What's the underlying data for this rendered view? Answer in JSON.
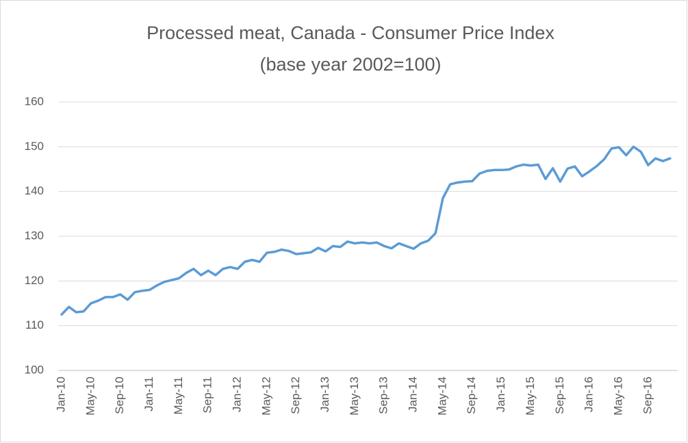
{
  "chart_data": {
    "type": "line",
    "title": "Processed meat, Canada - Consumer Price Index",
    "subtitle": "(base year 2002=100)",
    "categories": [
      "Jan-10",
      null,
      null,
      null,
      "May-10",
      null,
      null,
      null,
      "Sep-10",
      null,
      null,
      null,
      "Jan-11",
      null,
      null,
      null,
      "May-11",
      null,
      null,
      null,
      "Sep-11",
      null,
      null,
      null,
      "Jan-12",
      null,
      null,
      null,
      "May-12",
      null,
      null,
      null,
      "Sep-12",
      null,
      null,
      null,
      "Jan-13",
      null,
      null,
      null,
      "May-13",
      null,
      null,
      null,
      "Sep-13",
      null,
      null,
      null,
      "Jan-14",
      null,
      null,
      null,
      "May-14",
      null,
      null,
      null,
      "Sep-14",
      null,
      null,
      null,
      "Jan-15",
      null,
      null,
      null,
      "May-15",
      null,
      null,
      null,
      "Sep-15",
      null,
      null,
      null,
      "Jan-16",
      null,
      null,
      null,
      "May-16",
      null,
      null,
      null,
      "Sep-16",
      null,
      null,
      null
    ],
    "values": [
      112.5,
      114.2,
      113,
      113.2,
      115,
      115.6,
      116.4,
      116.4,
      117,
      115.8,
      117.5,
      117.8,
      118,
      119,
      119.8,
      120.2,
      120.6,
      121.8,
      122.7,
      121.3,
      122.3,
      121.3,
      122.7,
      123.1,
      122.7,
      124.3,
      124.7,
      124.3,
      126.3,
      126.5,
      127,
      126.7,
      126,
      126.2,
      126.4,
      127.4,
      126.6,
      127.8,
      127.6,
      128.8,
      128.4,
      128.6,
      128.4,
      128.6,
      127.8,
      127.3,
      128.4,
      127.8,
      127.2,
      128.4,
      129,
      130.7,
      138.5,
      141.6,
      142,
      142.2,
      142.3,
      144,
      144.6,
      144.8,
      144.8,
      144.9,
      145.6,
      146,
      145.8,
      146,
      142.8,
      145.2,
      142.2,
      145.1,
      145.6,
      143.4,
      144.5,
      145.7,
      147.2,
      149.6,
      149.9,
      148.1,
      150,
      148.9,
      145.9,
      147.4,
      146.8,
      147.4
    ],
    "color": "#5b9bd5",
    "ylim": [
      100,
      160
    ],
    "yticks": [
      100,
      110,
      120,
      130,
      140,
      150,
      160
    ],
    "grid": true
  }
}
